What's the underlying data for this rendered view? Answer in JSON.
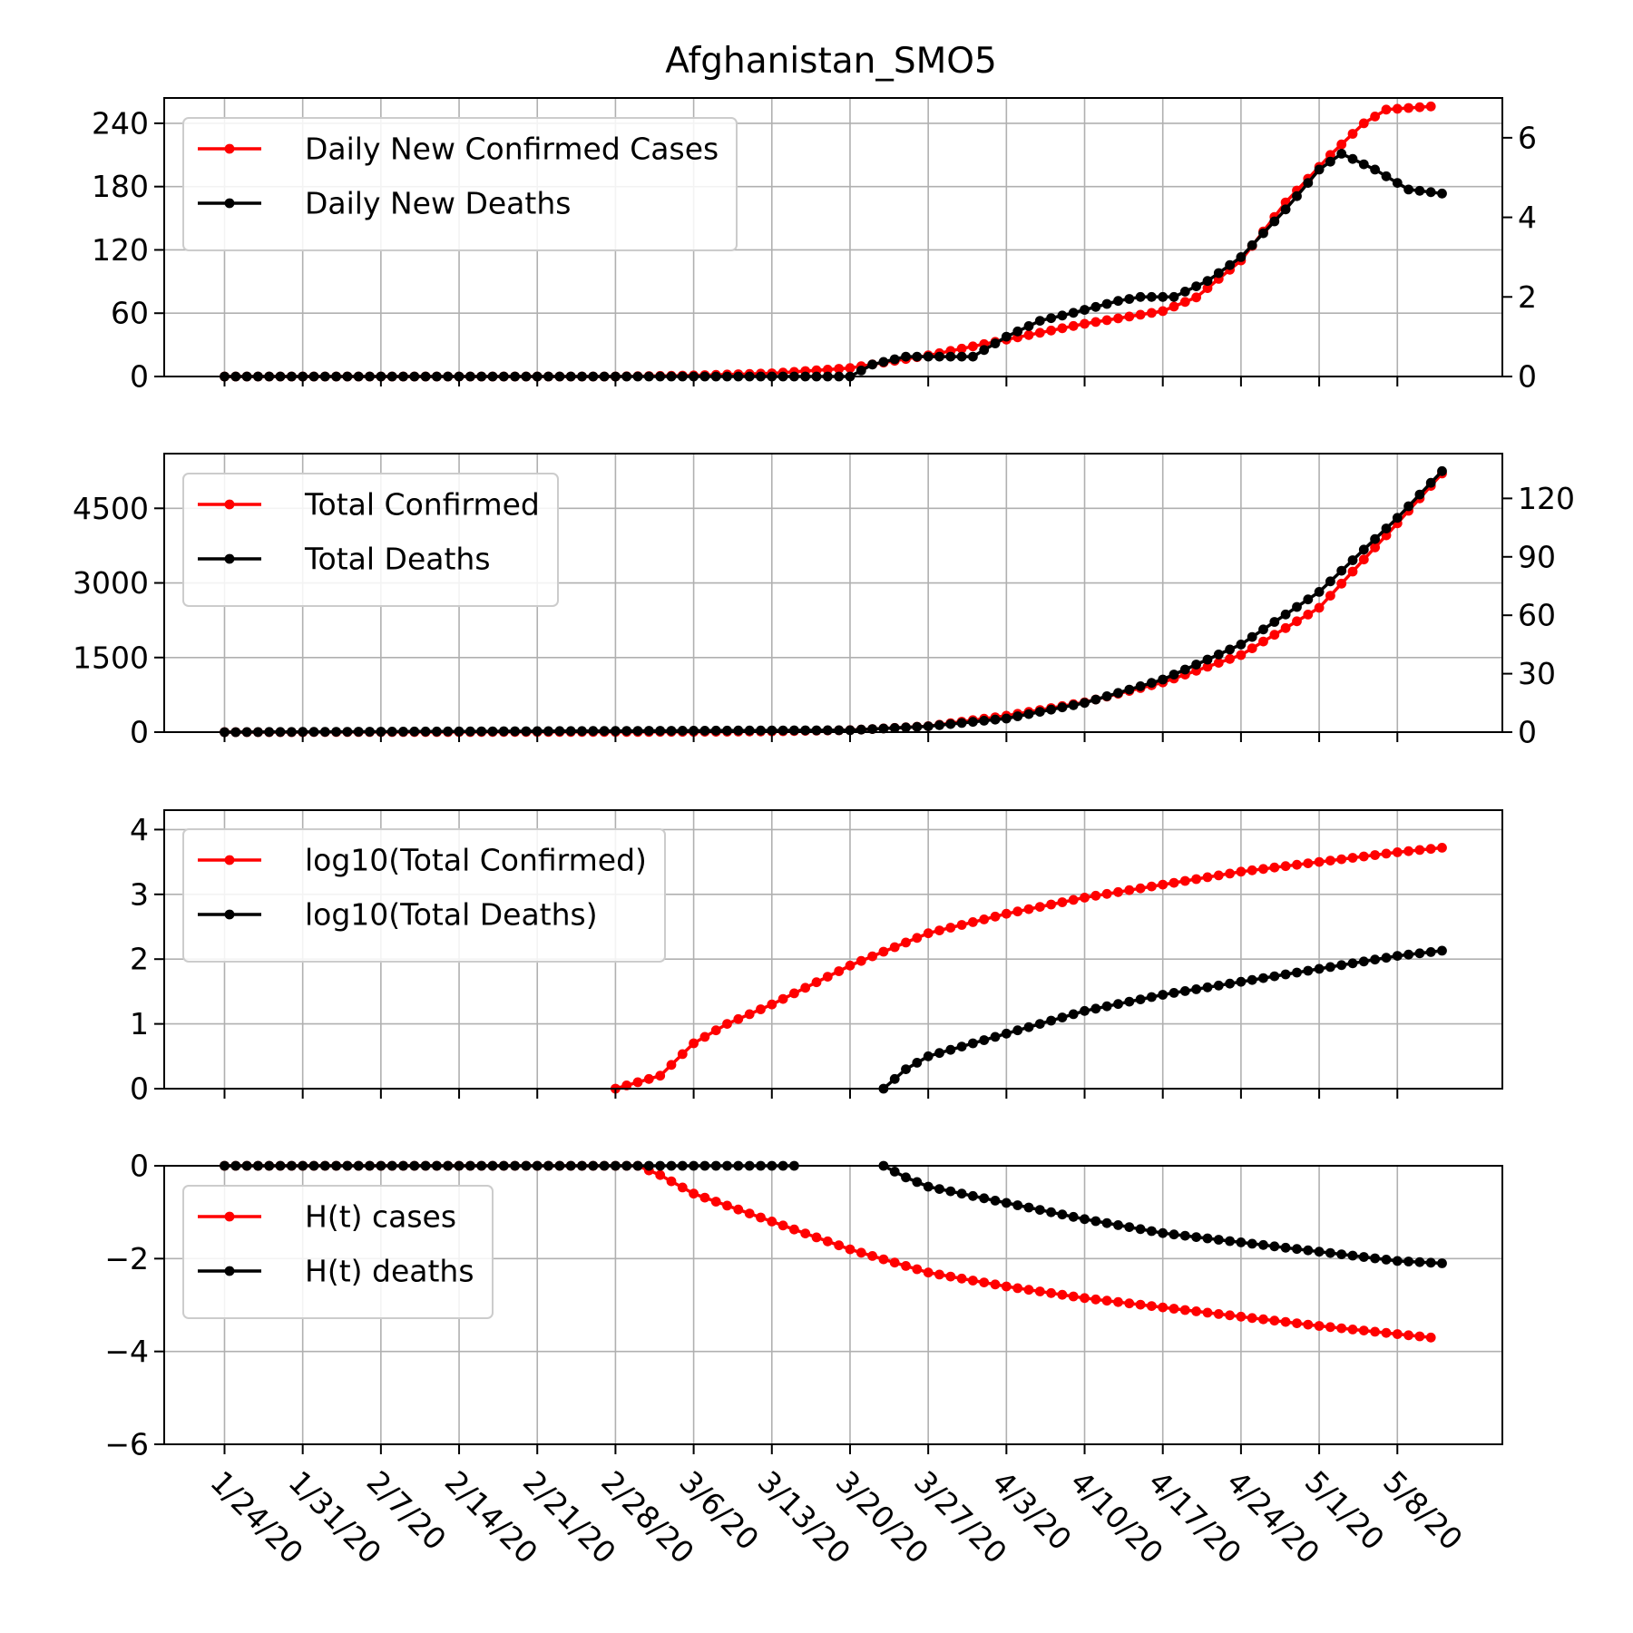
{
  "chart_data": {
    "title": "Afghanistan_SMO5",
    "x_tick_labels": [
      "1/24/20",
      "1/31/20",
      "2/7/20",
      "2/14/20",
      "2/21/20",
      "2/28/20",
      "3/6/20",
      "3/13/20",
      "3/20/20",
      "3/27/20",
      "4/3/20",
      "4/10/20",
      "4/17/20",
      "4/24/20",
      "5/1/20",
      "5/8/20"
    ],
    "x_range": [
      "1/24/20",
      "5/12/20"
    ],
    "grid": true,
    "colors": {
      "cases": "#ff0000",
      "deaths": "#000000",
      "grid": "#b0b0b0"
    },
    "panels": [
      {
        "type": "line",
        "legend_position": "top-left",
        "dual_axis": true,
        "left_axis": {
          "ylim": [
            0,
            264
          ],
          "ticks": [
            0,
            60,
            120,
            180,
            240
          ]
        },
        "right_axis": {
          "ylim": [
            0,
            7
          ],
          "ticks": [
            0,
            2,
            4,
            6
          ]
        },
        "series": [
          {
            "name": "Daily New Confirmed Cases",
            "axis": "left",
            "color": "#ff0000",
            "start": "1/24/20",
            "end": "5/11/20",
            "anchors": [
              [
                "1/24/20",
                0
              ],
              [
                "2/28/20",
                0
              ],
              [
                "3/6/20",
                1
              ],
              [
                "3/13/20",
                3
              ],
              [
                "3/20/20",
                8
              ],
              [
                "3/27/20",
                20
              ],
              [
                "4/3/20",
                35
              ],
              [
                "4/10/20",
                50
              ],
              [
                "4/17/20",
                62
              ],
              [
                "4/20/20",
                75
              ],
              [
                "4/24/20",
                110
              ],
              [
                "4/28/20",
                165
              ],
              [
                "5/2/20",
                210
              ],
              [
                "5/5/20",
                240
              ],
              [
                "5/7/20",
                253
              ],
              [
                "5/11/20",
                256
              ]
            ]
          },
          {
            "name": "Daily New Deaths",
            "axis": "right",
            "color": "#000000",
            "start": "1/24/20",
            "end": "5/12/20",
            "anchors": [
              [
                "1/24/20",
                0
              ],
              [
                "3/20/20",
                0
              ],
              [
                "3/22/20",
                0.3
              ],
              [
                "3/25/20",
                0.5
              ],
              [
                "3/31/20",
                0.5
              ],
              [
                "4/3/20",
                1.0
              ],
              [
                "4/6/20",
                1.4
              ],
              [
                "4/9/20",
                1.6
              ],
              [
                "4/13/20",
                1.9
              ],
              [
                "4/15/20",
                2.0
              ],
              [
                "4/18/20",
                2.0
              ],
              [
                "4/21/20",
                2.4
              ],
              [
                "4/24/20",
                3.0
              ],
              [
                "4/28/20",
                4.2
              ],
              [
                "5/1/20",
                5.2
              ],
              [
                "5/3/20",
                5.6
              ],
              [
                "5/6/20",
                5.2
              ],
              [
                "5/9/20",
                4.7
              ],
              [
                "5/12/20",
                4.6
              ]
            ]
          }
        ]
      },
      {
        "type": "line",
        "legend_position": "top-left",
        "dual_axis": true,
        "left_axis": {
          "ylim": [
            0,
            5600
          ],
          "ticks": [
            0,
            1500,
            3000,
            4500
          ]
        },
        "right_axis": {
          "ylim": [
            0,
            143
          ],
          "ticks": [
            0,
            30,
            60,
            90,
            120
          ]
        },
        "series": [
          {
            "name": "Total Confirmed",
            "axis": "left",
            "color": "#ff0000",
            "start": "1/24/20",
            "end": "5/12/20",
            "anchors": [
              [
                "1/24/20",
                0
              ],
              [
                "3/6/20",
                5
              ],
              [
                "3/13/20",
                15
              ],
              [
                "3/20/20",
                40
              ],
              [
                "3/27/20",
                120
              ],
              [
                "4/3/20",
                330
              ],
              [
                "4/10/20",
                600
              ],
              [
                "4/17/20",
                1000
              ],
              [
                "4/24/20",
                1550
              ],
              [
                "5/1/20",
                2500
              ],
              [
                "5/8/20",
                4200
              ],
              [
                "5/12/20",
                5200
              ]
            ]
          },
          {
            "name": "Total Deaths",
            "axis": "right",
            "color": "#000000",
            "start": "1/24/20",
            "end": "5/12/20",
            "anchors": [
              [
                "1/24/20",
                0
              ],
              [
                "3/20/20",
                1
              ],
              [
                "3/27/20",
                3
              ],
              [
                "4/3/20",
                7
              ],
              [
                "4/10/20",
                15
              ],
              [
                "4/17/20",
                27
              ],
              [
                "4/24/20",
                45
              ],
              [
                "5/1/20",
                72
              ],
              [
                "5/8/20",
                110
              ],
              [
                "5/12/20",
                134
              ]
            ]
          }
        ]
      },
      {
        "type": "line",
        "legend_position": "top-left",
        "dual_axis": false,
        "left_axis": {
          "ylim": [
            0,
            4.3
          ],
          "ticks": [
            0,
            1,
            2,
            3,
            4
          ]
        },
        "series": [
          {
            "name": "log10(Total Confirmed)",
            "axis": "left",
            "color": "#ff0000",
            "start": "2/28/20",
            "end": "5/12/20",
            "anchors": [
              [
                "2/28/20",
                0
              ],
              [
                "3/3/20",
                0.2
              ],
              [
                "3/6/20",
                0.7
              ],
              [
                "3/9/20",
                1.0
              ],
              [
                "3/13/20",
                1.3
              ],
              [
                "3/20/20",
                1.9
              ],
              [
                "3/27/20",
                2.4
              ],
              [
                "4/3/20",
                2.7
              ],
              [
                "4/10/20",
                2.95
              ],
              [
                "4/17/20",
                3.15
              ],
              [
                "4/24/20",
                3.35
              ],
              [
                "5/1/20",
                3.5
              ],
              [
                "5/8/20",
                3.65
              ],
              [
                "5/12/20",
                3.72
              ]
            ]
          },
          {
            "name": "log10(Total Deaths)",
            "axis": "left",
            "color": "#000000",
            "start": "3/23/20",
            "end": "5/12/20",
            "anchors": [
              [
                "3/23/20",
                0
              ],
              [
                "3/25/20",
                0.3
              ],
              [
                "3/27/20",
                0.5
              ],
              [
                "4/3/20",
                0.85
              ],
              [
                "4/10/20",
                1.2
              ],
              [
                "4/17/20",
                1.45
              ],
              [
                "4/24/20",
                1.65
              ],
              [
                "5/1/20",
                1.85
              ],
              [
                "5/8/20",
                2.05
              ],
              [
                "5/12/20",
                2.13
              ]
            ]
          }
        ]
      },
      {
        "type": "line",
        "legend_position": "top-left",
        "dual_axis": false,
        "left_axis": {
          "ylim": [
            -6,
            0
          ],
          "ticks": [
            -6,
            -4,
            -2,
            0
          ],
          "tick_labels": [
            "−6",
            "−4",
            "−2",
            "0"
          ]
        },
        "series": [
          {
            "name": "H(t) cases",
            "axis": "left",
            "color": "#ff0000",
            "start": "1/24/20",
            "end": "5/11/20",
            "anchors": [
              [
                "1/24/20",
                0
              ],
              [
                "3/1/20",
                0
              ],
              [
                "3/3/20",
                -0.2
              ],
              [
                "3/6/20",
                -0.6
              ],
              [
                "3/13/20",
                -1.2
              ],
              [
                "3/20/20",
                -1.8
              ],
              [
                "3/27/20",
                -2.3
              ],
              [
                "4/3/20",
                -2.6
              ],
              [
                "4/10/20",
                -2.85
              ],
              [
                "4/17/20",
                -3.05
              ],
              [
                "4/24/20",
                -3.25
              ],
              [
                "5/1/20",
                -3.45
              ],
              [
                "5/11/20",
                -3.7
              ]
            ]
          },
          {
            "name": "H(t) deaths",
            "axis": "left",
            "color": "#000000",
            "start": "1/24/20",
            "end": "3/15/20",
            "anchors": [
              [
                "1/24/20",
                0
              ],
              [
                "3/15/20",
                0
              ]
            ]
          },
          {
            "name": "H(t) deaths",
            "axis": "left",
            "color": "#000000",
            "start": "3/23/20",
            "end": "5/12/20",
            "anchors": [
              [
                "3/23/20",
                0
              ],
              [
                "3/25/20",
                -0.25
              ],
              [
                "3/27/20",
                -0.45
              ],
              [
                "4/3/20",
                -0.8
              ],
              [
                "4/10/20",
                -1.15
              ],
              [
                "4/17/20",
                -1.45
              ],
              [
                "4/24/20",
                -1.65
              ],
              [
                "5/1/20",
                -1.85
              ],
              [
                "5/8/20",
                -2.05
              ],
              [
                "5/12/20",
                -2.1
              ]
            ]
          }
        ]
      }
    ]
  }
}
